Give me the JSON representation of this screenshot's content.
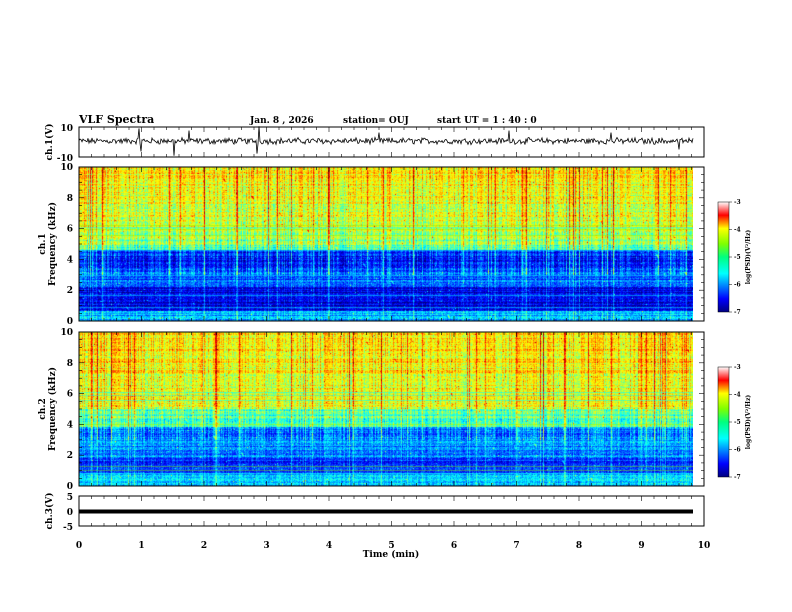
{
  "header": {
    "title": "VLF Spectra",
    "date": "Jan. 8 , 2026",
    "station": "station= OUJ",
    "start": "start  UT =   1 : 40 : 0"
  },
  "chart_data": [
    {
      "type": "line",
      "ylabel": "ch.1(V)",
      "ylim": [
        -10,
        10
      ],
      "yticks": [
        "10",
        "-10"
      ],
      "xlim": [
        0,
        10
      ],
      "description_values": {
        "baseline": 0,
        "typical_amplitude": 1.5
      }
    },
    {
      "type": "heatmap",
      "ylabel_line1": "ch.1",
      "ylabel_line2": "Frequency  (kHz)",
      "ylim": [
        0,
        10
      ],
      "yticks": [
        "0",
        "2",
        "4",
        "6",
        "8",
        "10"
      ],
      "xlim": [
        0,
        9.82
      ],
      "colorbar": {
        "label": "log(PSD)(V²/Hz)",
        "range": [
          -7,
          -3
        ],
        "ticks": [
          "-3",
          "-4",
          "-5",
          "-6",
          "-7"
        ]
      }
    },
    {
      "type": "heatmap",
      "ylabel_line1": "ch.2",
      "ylabel_line2": "Frequency  (kHz)",
      "ylim": [
        0,
        10
      ],
      "yticks": [
        "0",
        "2",
        "4",
        "6",
        "8",
        "10"
      ],
      "xlim": [
        0,
        9.82
      ],
      "colorbar": {
        "label": "log(PSD)(V²/Hz)",
        "range": [
          -7,
          -3
        ],
        "ticks": [
          "-3",
          "-4",
          "-5",
          "-6",
          "-7"
        ]
      }
    },
    {
      "type": "line",
      "ylabel": "ch.3(V)",
      "ylim": [
        -5,
        5
      ],
      "yticks": [
        "5",
        "0",
        "-5"
      ],
      "xlim": [
        0,
        10
      ],
      "description_values": {
        "baseline": 0
      }
    }
  ],
  "xaxis": {
    "label": "Time  (min)",
    "ticks": [
      "0",
      "1",
      "2",
      "3",
      "4",
      "5",
      "6",
      "7",
      "8",
      "9",
      "10"
    ],
    "range": [
      0,
      10
    ]
  }
}
